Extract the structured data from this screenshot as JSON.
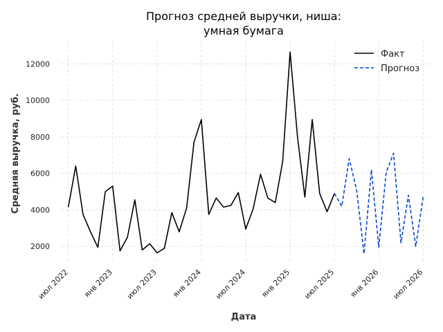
{
  "chart_data": {
    "type": "line",
    "title_line1": "Прогноз средней выручки, ниша:",
    "title_line2": "умная бумага",
    "xlabel": "Дата",
    "ylabel": "Средняя выручка, руб.",
    "ylim": [
      1100,
      13300
    ],
    "yticks": [
      2000,
      4000,
      6000,
      8000,
      10000,
      12000
    ],
    "x_tick_labels": [
      "июл 2022",
      "янв 2023",
      "июл 2023",
      "янв 2024",
      "июл 2024",
      "янв 2025",
      "июл 2025",
      "янв 2026",
      "июл 2026"
    ],
    "x_tick_months": [
      "2022-07",
      "2023-01",
      "2023-07",
      "2024-01",
      "2024-07",
      "2025-01",
      "2025-07",
      "2026-01",
      "2026-07"
    ],
    "xlim": [
      "2022-06",
      "2026-08"
    ],
    "grid": true,
    "legend_position": "top-right",
    "series": [
      {
        "name": "Факт",
        "color": "#000000",
        "style": "solid",
        "x": [
          "2022-07",
          "2022-08",
          "2022-09",
          "2022-10",
          "2022-11",
          "2022-12",
          "2023-01",
          "2023-02",
          "2023-03",
          "2023-04",
          "2023-05",
          "2023-06",
          "2023-07",
          "2023-08",
          "2023-09",
          "2023-10",
          "2023-11",
          "2023-12",
          "2024-01",
          "2024-02",
          "2024-03",
          "2024-04",
          "2024-05",
          "2024-06",
          "2024-07",
          "2024-08",
          "2024-09",
          "2024-10",
          "2024-11",
          "2024-12",
          "2025-01",
          "2025-02",
          "2025-03",
          "2025-04",
          "2025-05",
          "2025-06",
          "2025-07"
        ],
        "values": [
          4150,
          6400,
          3750,
          2800,
          1950,
          5000,
          5300,
          1750,
          2500,
          4550,
          1800,
          2150,
          1650,
          1900,
          3850,
          2800,
          4100,
          7700,
          8950,
          3750,
          4650,
          4150,
          4250,
          4950,
          2950,
          4050,
          5950,
          4650,
          4400,
          6650,
          12650,
          8000,
          4700,
          8950,
          4900,
          3900,
          4900
        ]
      },
      {
        "name": "Прогноз",
        "color": "#0044cc",
        "style": "dashed",
        "x": [
          "2025-07",
          "2025-08",
          "2025-09",
          "2025-10",
          "2025-11",
          "2025-12",
          "2026-01",
          "2026-02",
          "2026-03",
          "2026-04",
          "2026-05",
          "2026-06",
          "2026-07"
        ],
        "values": [
          4900,
          4200,
          6800,
          5100,
          1600,
          6200,
          1950,
          6050,
          7100,
          2200,
          4800,
          2000,
          4700
        ]
      }
    ]
  }
}
